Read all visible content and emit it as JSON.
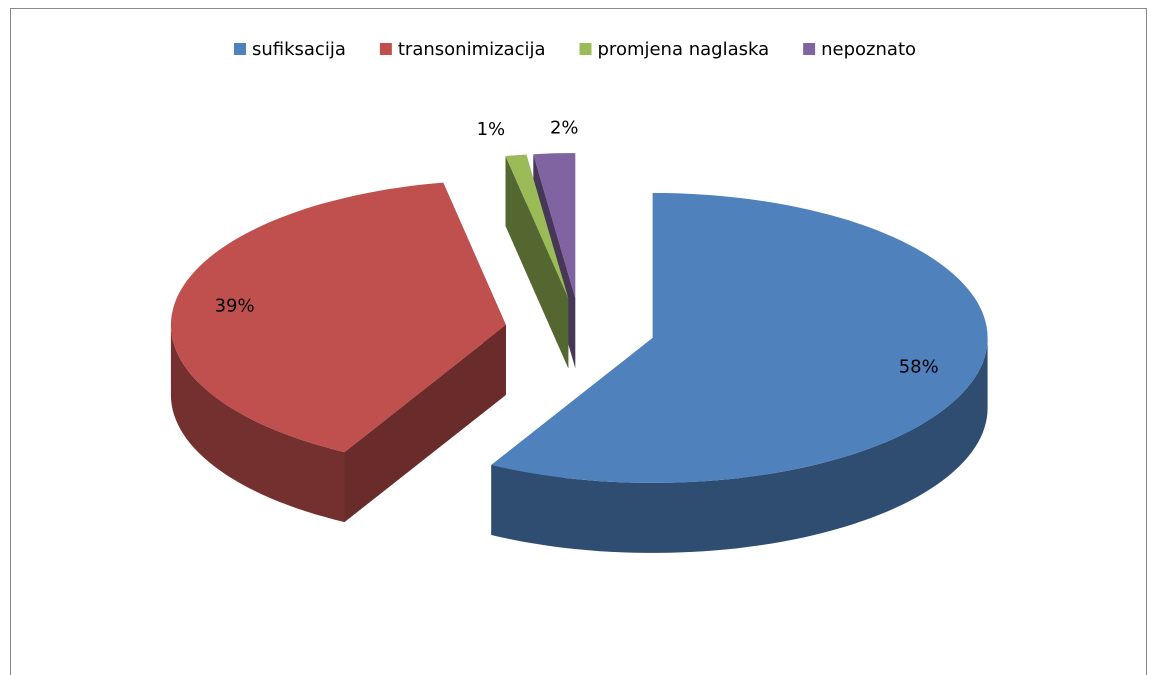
{
  "chart_data": {
    "type": "pie",
    "categories": [
      "sufiksacija",
      "transonimizacija",
      "promjena naglaska",
      "nepoznato"
    ],
    "values": [
      58,
      39,
      1,
      2
    ],
    "value_labels": [
      "58%",
      "39%",
      "1%",
      "2%"
    ],
    "colors": [
      "#4f81bd",
      "#c0504d",
      "#9bbb59",
      "#8064a2"
    ],
    "legend": "top"
  }
}
